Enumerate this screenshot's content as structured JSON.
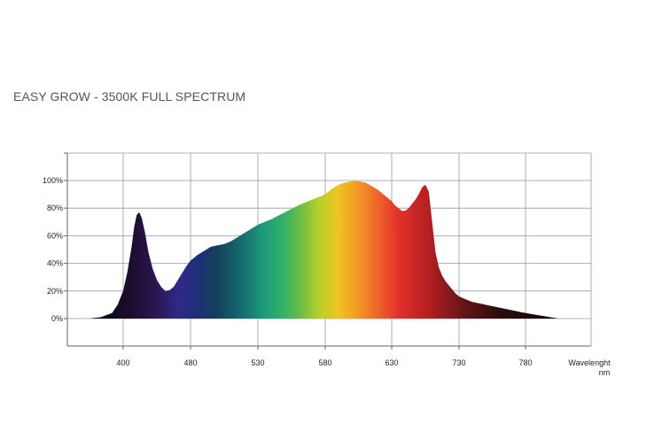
{
  "chart_data": {
    "type": "area",
    "title": "EASY GROW - 3500K FULL SPECTRUM",
    "xlabel": "Wavelenght",
    "xunit": "nm",
    "ylabel": "",
    "xlim": [
      350,
      800
    ],
    "ylim": [
      -20,
      120
    ],
    "x_ticks": [
      400,
      480,
      530,
      580,
      630,
      730,
      780
    ],
    "y_ticks": [
      {
        "value": 0,
        "label": "0%"
      },
      {
        "value": 20,
        "label": "20%"
      },
      {
        "value": 40,
        "label": "40%"
      },
      {
        "value": 60,
        "label": "60%"
      },
      {
        "value": 80,
        "label": "80%"
      },
      {
        "value": 100,
        "label": "100%"
      }
    ],
    "grid": true,
    "series": [
      {
        "x": [
          370,
          380,
          390,
          395,
          400,
          405,
          410,
          413,
          416,
          419,
          422,
          426,
          430,
          435,
          440,
          445,
          450,
          455,
          460,
          465,
          470,
          475,
          480,
          485,
          490,
          495,
          500,
          505,
          510,
          515,
          520,
          525,
          530,
          540,
          550,
          560,
          570,
          580,
          585,
          590,
          595,
          600,
          605,
          610,
          615,
          620,
          625,
          630,
          635,
          640,
          645,
          650,
          655,
          660,
          665,
          670,
          675,
          680,
          685,
          690,
          695,
          700,
          705,
          710,
          715,
          720,
          725,
          730,
          735,
          740,
          745,
          750,
          755,
          760,
          765,
          770,
          775,
          780,
          785,
          790
        ],
        "y": [
          0,
          1,
          4,
          10,
          20,
          34,
          52,
          66,
          75,
          77,
          73,
          62,
          48,
          36,
          28,
          23,
          20,
          20.5,
          23,
          28,
          33,
          38,
          42,
          46,
          49,
          52,
          53,
          54,
          56,
          59,
          62,
          65,
          68,
          72,
          77,
          82,
          86,
          90,
          94,
          97,
          98.5,
          99.5,
          99.5,
          98.5,
          96,
          93,
          89,
          85,
          82,
          80,
          78,
          78,
          80,
          83,
          86,
          90,
          95,
          97,
          92,
          70,
          48,
          37,
          31,
          27,
          24,
          21,
          18,
          16,
          14,
          12,
          11,
          10,
          9,
          8,
          7,
          6,
          5,
          4,
          2,
          0
        ]
      }
    ]
  }
}
